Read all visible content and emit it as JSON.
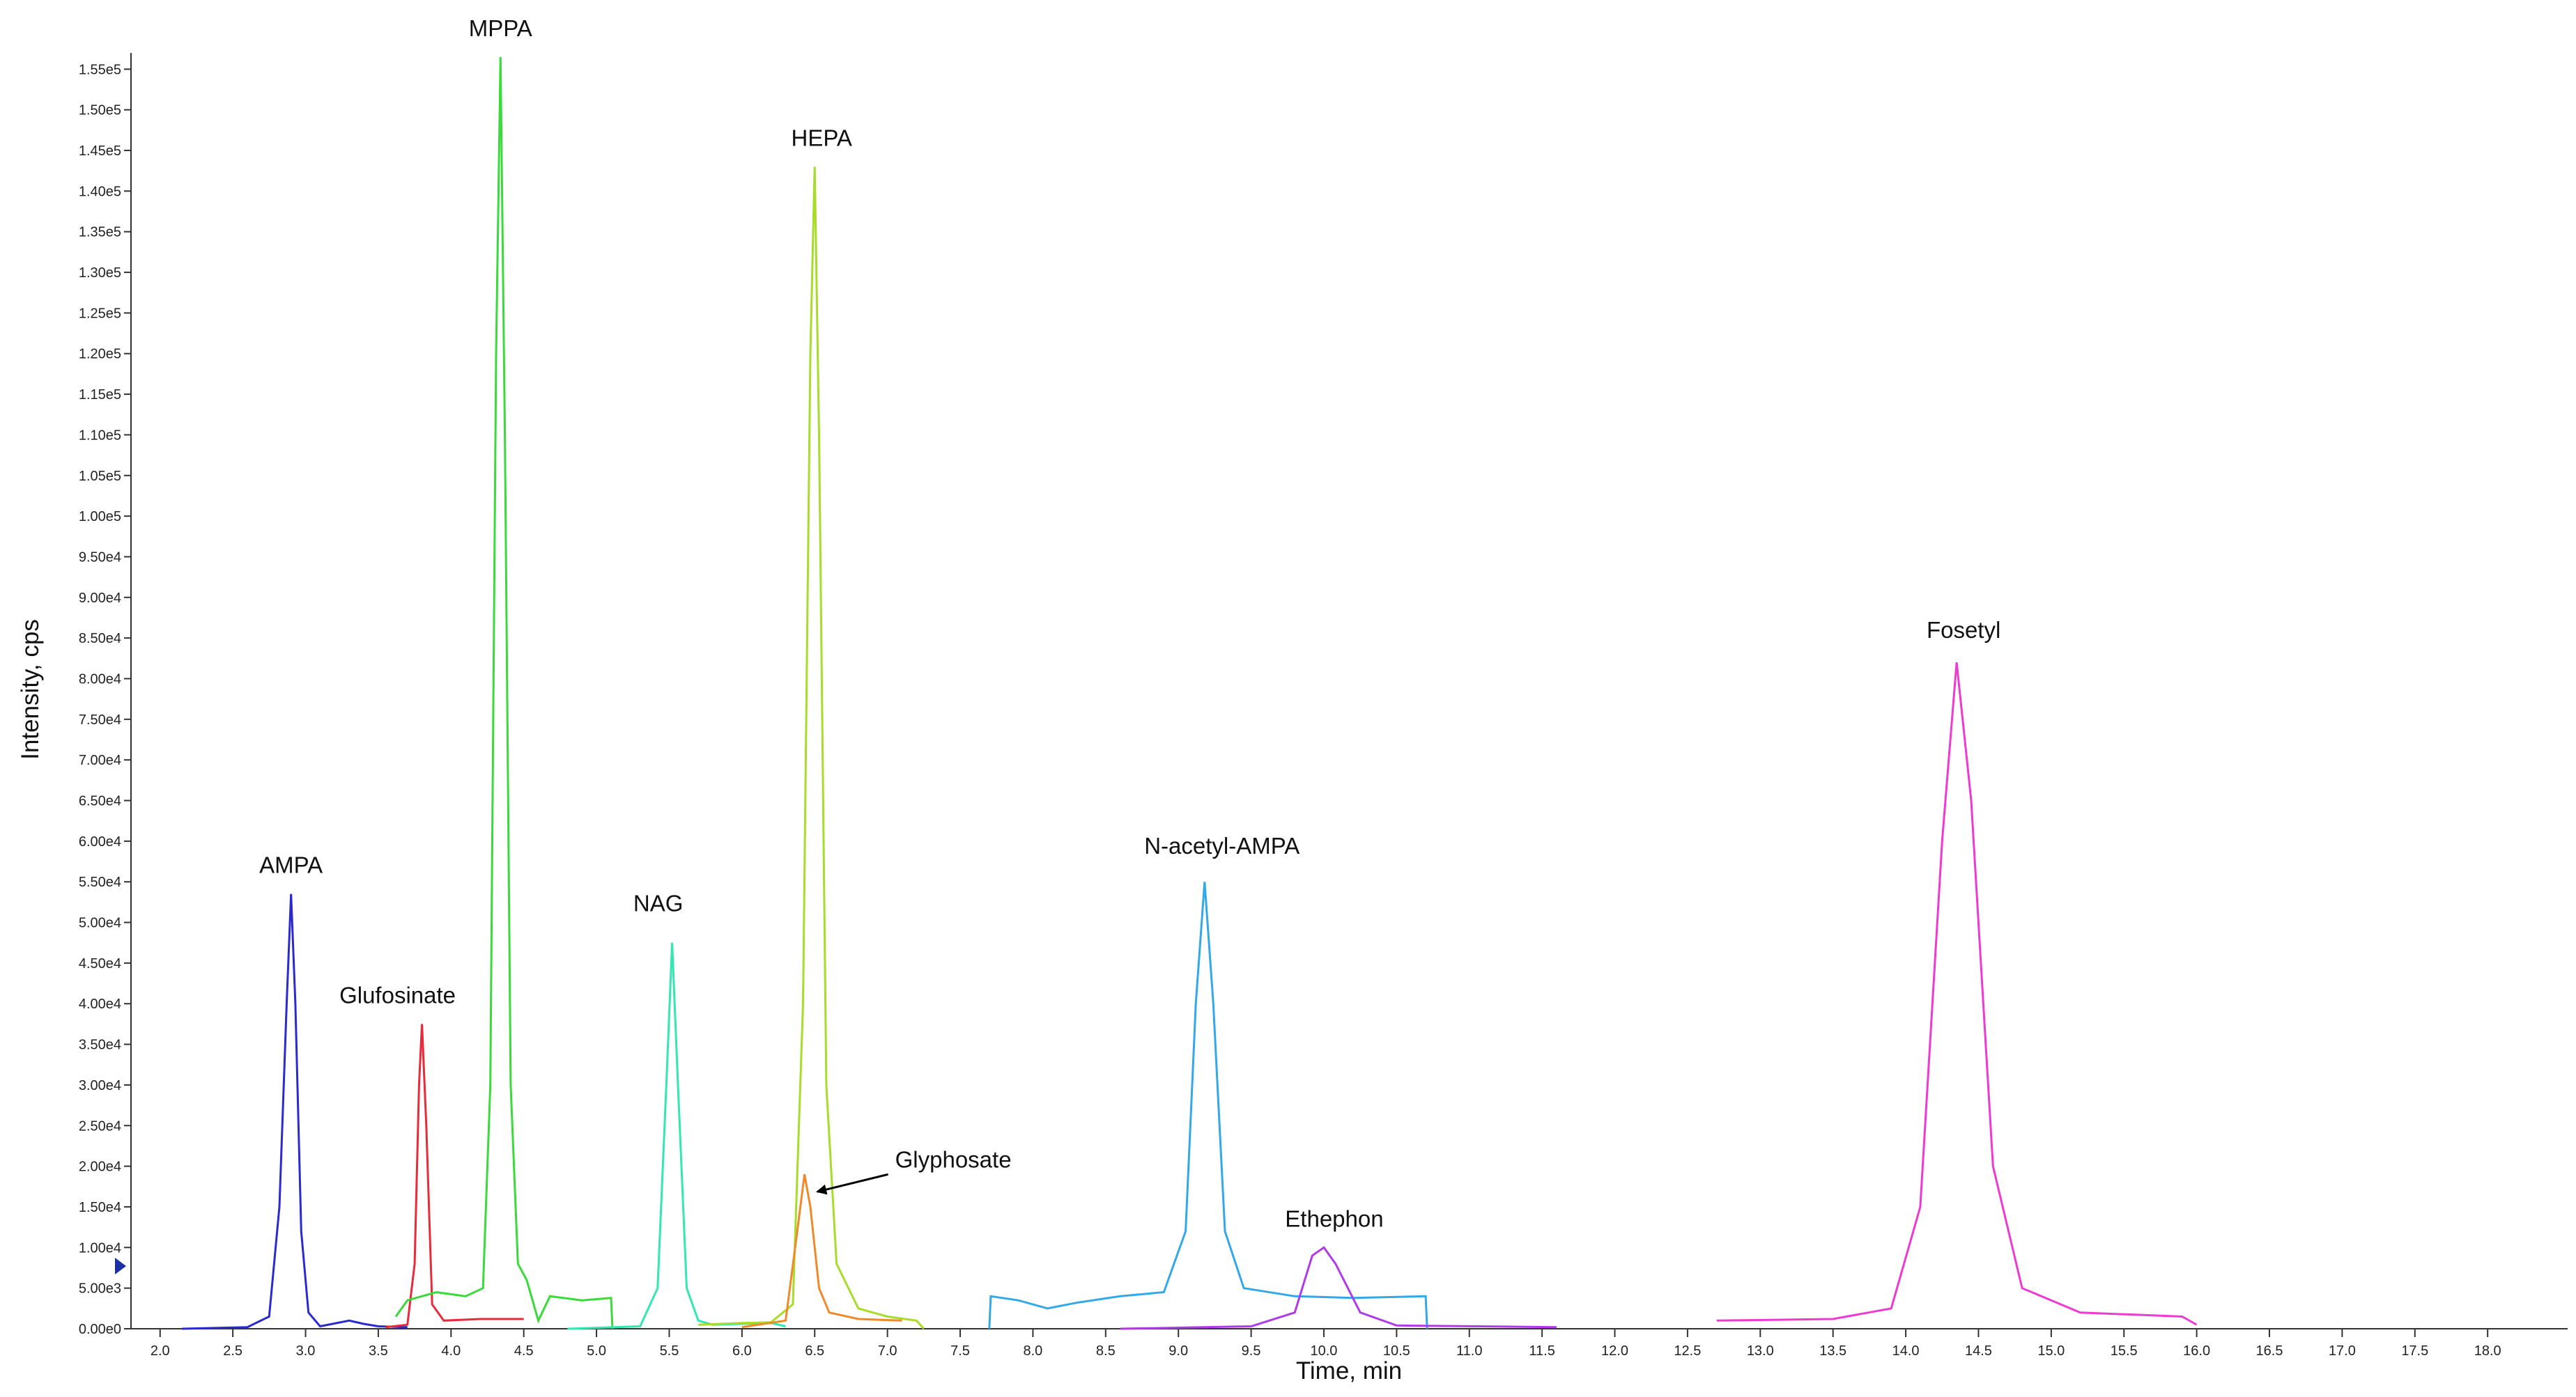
{
  "chart_data": {
    "type": "line",
    "xlabel": "Time, min",
    "ylabel": "Intensity, cps",
    "xlim": [
      1.8,
      18.55
    ],
    "ylim": [
      0,
      157000
    ],
    "xticks": [
      {
        "value": 2,
        "label": "2.0"
      },
      {
        "value": 2.5,
        "label": "2.5"
      },
      {
        "value": 3,
        "label": "3.0"
      },
      {
        "value": 3.5,
        "label": "3.5"
      },
      {
        "value": 4,
        "label": "4.0"
      },
      {
        "value": 4.5,
        "label": "4.5"
      },
      {
        "value": 5,
        "label": "5.0"
      },
      {
        "value": 5.5,
        "label": "5.5"
      },
      {
        "value": 6,
        "label": "6.0"
      },
      {
        "value": 6.5,
        "label": "6.5"
      },
      {
        "value": 7,
        "label": "7.0"
      },
      {
        "value": 7.5,
        "label": "7.5"
      },
      {
        "value": 8,
        "label": "8.0"
      },
      {
        "value": 8.5,
        "label": "8.5"
      },
      {
        "value": 9,
        "label": "9.0"
      },
      {
        "value": 9.5,
        "label": "9.5"
      },
      {
        "value": 10,
        "label": "10.0"
      },
      {
        "value": 10.5,
        "label": "10.5"
      },
      {
        "value": 11,
        "label": "11.0"
      },
      {
        "value": 11.5,
        "label": "11.5"
      },
      {
        "value": 12,
        "label": "12.0"
      },
      {
        "value": 12.5,
        "label": "12.5"
      },
      {
        "value": 13,
        "label": "13.0"
      },
      {
        "value": 13.5,
        "label": "13.5"
      },
      {
        "value": 14,
        "label": "14.0"
      },
      {
        "value": 14.5,
        "label": "14.5"
      },
      {
        "value": 15,
        "label": "15.0"
      },
      {
        "value": 15.5,
        "label": "15.5"
      },
      {
        "value": 16,
        "label": "16.0"
      },
      {
        "value": 16.5,
        "label": "16.5"
      },
      {
        "value": 17,
        "label": "17.0"
      },
      {
        "value": 17.5,
        "label": "17.5"
      },
      {
        "value": 18,
        "label": "18.0"
      }
    ],
    "yticks": [
      {
        "value": 0,
        "label": "0.00e0"
      },
      {
        "value": 5000,
        "label": "5.00e3"
      },
      {
        "value": 10000,
        "label": "1.00e4"
      },
      {
        "value": 15000,
        "label": "1.50e4"
      },
      {
        "value": 20000,
        "label": "2.00e4"
      },
      {
        "value": 25000,
        "label": "2.50e4"
      },
      {
        "value": 30000,
        "label": "3.00e4"
      },
      {
        "value": 35000,
        "label": "3.50e4"
      },
      {
        "value": 40000,
        "label": "4.00e4"
      },
      {
        "value": 45000,
        "label": "4.50e4"
      },
      {
        "value": 50000,
        "label": "5.00e4"
      },
      {
        "value": 55000,
        "label": "5.50e4"
      },
      {
        "value": 60000,
        "label": "6.00e4"
      },
      {
        "value": 65000,
        "label": "6.50e4"
      },
      {
        "value": 70000,
        "label": "7.00e4"
      },
      {
        "value": 75000,
        "label": "7.50e4"
      },
      {
        "value": 80000,
        "label": "8.00e4"
      },
      {
        "value": 85000,
        "label": "8.50e4"
      },
      {
        "value": 90000,
        "label": "9.00e4"
      },
      {
        "value": 95000,
        "label": "9.50e4"
      },
      {
        "value": 100000,
        "label": "1.00e5"
      },
      {
        "value": 105000,
        "label": "1.05e5"
      },
      {
        "value": 110000,
        "label": "1.10e5"
      },
      {
        "value": 115000,
        "label": "1.15e5"
      },
      {
        "value": 120000,
        "label": "1.20e5"
      },
      {
        "value": 125000,
        "label": "1.25e5"
      },
      {
        "value": 130000,
        "label": "1.30e5"
      },
      {
        "value": 135000,
        "label": "1.35e5"
      },
      {
        "value": 140000,
        "label": "1.40e5"
      },
      {
        "value": 145000,
        "label": "1.45e5"
      },
      {
        "value": 150000,
        "label": "1.50e5"
      },
      {
        "value": 155000,
        "label": "1.55e5"
      }
    ],
    "series": [
      {
        "name": "AMPA",
        "color": "#2a2ad0",
        "x": [
          2.15,
          2.6,
          2.75,
          2.82,
          2.87,
          2.9,
          2.93,
          2.97,
          3.02,
          3.1,
          3.3,
          3.4,
          3.5,
          3.7
        ],
        "values": [
          0,
          200,
          1500,
          15000,
          40000,
          53500,
          40000,
          12000,
          2000,
          300,
          1000,
          600,
          300,
          200
        ]
      },
      {
        "name": "Glufosinate",
        "color": "#e82a3a",
        "x": [
          3.55,
          3.7,
          3.75,
          3.78,
          3.8,
          3.83,
          3.87,
          3.95,
          4.2,
          4.5
        ],
        "values": [
          200,
          500,
          8000,
          30000,
          37500,
          25000,
          3000,
          1000,
          1200,
          1200
        ]
      },
      {
        "name": "MPPA",
        "color": "#3ada3a",
        "x": [
          3.62,
          3.7,
          3.9,
          4.1,
          4.22,
          4.27,
          4.31,
          4.34,
          4.37,
          4.41,
          4.46,
          4.52,
          4.6,
          4.68,
          4.9,
          5.1,
          5.11
        ],
        "values": [
          1500,
          3500,
          4500,
          4000,
          5000,
          30000,
          120000,
          156500,
          110000,
          30000,
          8000,
          6000,
          1000,
          4000,
          3500,
          3800,
          0
        ]
      },
      {
        "name": "NAG",
        "color": "#33e8b0",
        "x": [
          4.8,
          5.3,
          5.42,
          5.48,
          5.52,
          5.56,
          5.62,
          5.7,
          5.8,
          6.2,
          6.3
        ],
        "values": [
          0,
          300,
          5000,
          30000,
          47500,
          30000,
          5000,
          1000,
          500,
          700,
          300
        ]
      },
      {
        "name": "HEPA",
        "color": "#a8dc2a",
        "x": [
          5.7,
          6.0,
          6.2,
          6.35,
          6.42,
          6.47,
          6.5,
          6.53,
          6.58,
          6.65,
          6.8,
          7.0,
          7.2,
          7.25
        ],
        "values": [
          500,
          700,
          800,
          3000,
          40000,
          120000,
          143000,
          110000,
          30000,
          8000,
          2500,
          1500,
          1000,
          0
        ]
      },
      {
        "name": "Glyphosate",
        "color": "#ee8a2a",
        "x": [
          6.0,
          6.3,
          6.38,
          6.43,
          6.47,
          6.53,
          6.6,
          6.8,
          7.1
        ],
        "values": [
          200,
          1000,
          12000,
          19000,
          15000,
          5000,
          2000,
          1200,
          1000
        ]
      },
      {
        "name": "N-acetyl-AMPA",
        "color": "#33a8e8",
        "x": [
          7.7,
          7.71,
          7.9,
          8.1,
          8.3,
          8.6,
          8.9,
          9.05,
          9.12,
          9.18,
          9.24,
          9.32,
          9.45,
          9.8,
          10.2,
          10.7,
          10.71
        ],
        "values": [
          0,
          4000,
          3500,
          2500,
          3200,
          4000,
          4500,
          12000,
          40000,
          55000,
          40000,
          12000,
          5000,
          4000,
          3800,
          4000,
          0
        ]
      },
      {
        "name": "Ethephon",
        "color": "#b03ae8",
        "x": [
          8.6,
          9.5,
          9.8,
          9.92,
          10.0,
          10.08,
          10.25,
          10.5,
          11.6
        ],
        "values": [
          0,
          300,
          2000,
          9000,
          10000,
          8000,
          2000,
          400,
          200
        ]
      },
      {
        "name": "Fosetyl",
        "color": "#ee3ad0",
        "x": [
          12.7,
          13.5,
          13.9,
          14.1,
          14.25,
          14.35,
          14.45,
          14.6,
          14.8,
          15.2,
          15.9,
          16.0
        ],
        "values": [
          1000,
          1200,
          2500,
          15000,
          60000,
          82000,
          65000,
          20000,
          5000,
          2000,
          1500,
          500
        ]
      }
    ]
  }
}
